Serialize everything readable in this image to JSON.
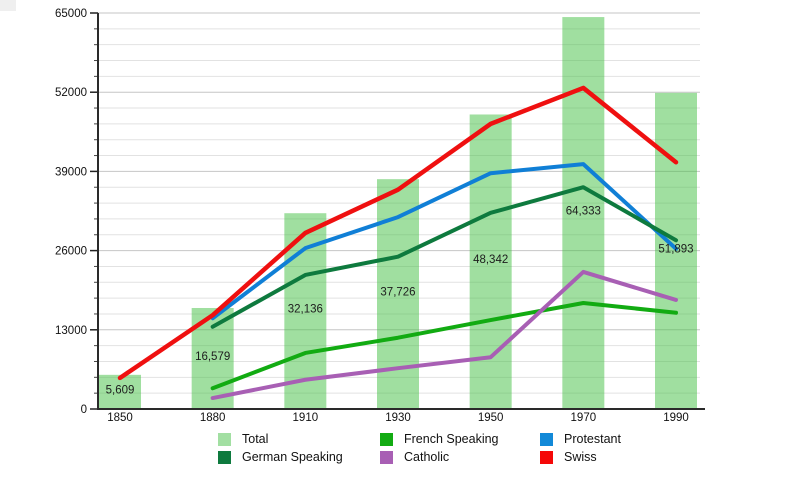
{
  "chart_data": {
    "type": "bar",
    "title": "",
    "xlabel": "",
    "ylabel": "",
    "categories": [
      "1850",
      "1880",
      "1910",
      "1930",
      "1950",
      "1970",
      "1990"
    ],
    "ylim": [
      0,
      65000
    ],
    "y_major_ticks": [
      0,
      13000,
      26000,
      39000,
      52000,
      65000
    ],
    "y_major_tick_labels": [
      "0",
      "13000",
      "26000",
      "39000",
      "52000",
      "65000"
    ],
    "y_minor_step": 2600,
    "grid": "horizontal-only",
    "legend_position": "bottom",
    "bar_series": {
      "name": "Total",
      "values": [
        5609,
        16579,
        32136,
        37726,
        48342,
        64333,
        51893
      ],
      "value_labels": [
        "5,609",
        "16,579",
        "32,136",
        "37,726",
        "48,342",
        "64,333",
        "51,893"
      ],
      "fill_color": "#a2dfa2",
      "fill_rgba": [
        65,
        191,
        65,
        0.5
      ]
    },
    "line_series": [
      {
        "name": "French Speaking",
        "color": "#12ab12",
        "values": [
          null,
          3400,
          9200,
          11700,
          14600,
          17400,
          15800
        ]
      },
      {
        "name": "Catholic",
        "color": "#a85fb4",
        "values": [
          null,
          1800,
          4800,
          6700,
          8500,
          22500,
          17900
        ]
      },
      {
        "name": "Protestant",
        "color": "#107fd6",
        "values": [
          null,
          14900,
          26400,
          31500,
          38700,
          40200,
          26300
        ]
      },
      {
        "name": "German Speaking",
        "color": "#0e7a3e",
        "values": [
          null,
          13500,
          22000,
          25000,
          32200,
          36400,
          27700
        ]
      },
      {
        "name": "Swiss",
        "color": "#ef1010",
        "values": [
          5100,
          15400,
          28900,
          36000,
          46800,
          52700,
          40500
        ]
      }
    ]
  },
  "legend": {
    "items": [
      {
        "label": "Total",
        "color": "#a2dfa2"
      },
      {
        "label": "German Speaking",
        "color": "#0e7a3e"
      },
      {
        "label": "French Speaking",
        "color": "#12ab12"
      },
      {
        "label": "Catholic",
        "color": "#a85fb4"
      },
      {
        "label": "Protestant",
        "color": "#1289d8"
      },
      {
        "label": "Swiss",
        "color": "#f50808"
      }
    ]
  }
}
